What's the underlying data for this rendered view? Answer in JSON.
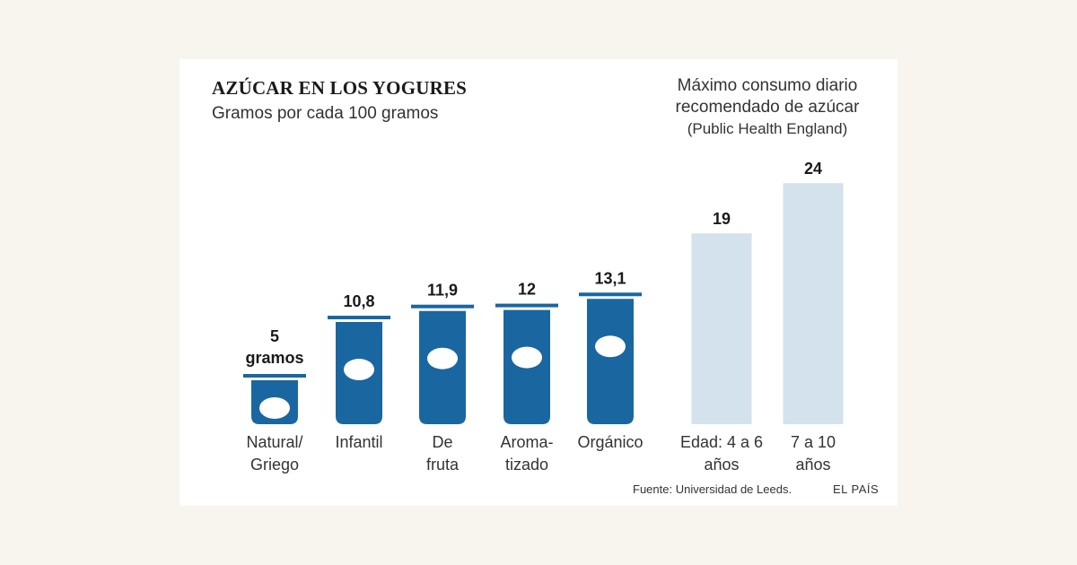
{
  "header": {
    "title": "AZÚCAR EN LOS YOGURES",
    "subtitle": "Gramos por cada 100 gramos"
  },
  "side_note": {
    "line1": "Máximo consumo diario",
    "line2": "recomendado de azúcar",
    "line3": "(Public Health England)"
  },
  "footer": {
    "source": "Fuente: Universidad de Leeds.",
    "brand": "EL PAÍS"
  },
  "colors": {
    "yogurt_bar": "#1a66a0",
    "recommendation_bar": "#d3e2ec",
    "background": "#f8f5ee"
  },
  "chart_data": [
    {
      "type": "bar",
      "unit": "gramos",
      "categories": [
        [
          "Natural/",
          "Griego"
        ],
        [
          "Infantil"
        ],
        [
          "De",
          "fruta"
        ],
        [
          "Aroma-",
          "tizado"
        ],
        [
          "Orgánico"
        ]
      ],
      "values": [
        5,
        10.8,
        11.9,
        12,
        13.1
      ],
      "value_labels": [
        "5",
        "10,8",
        "11,9",
        "12",
        "13,1"
      ],
      "first_label_unit": "gramos",
      "ylim": [
        0,
        24
      ]
    },
    {
      "type": "bar",
      "categories": [
        [
          "Edad: 4 a 6",
          "años"
        ],
        [
          "7 a 10",
          "años"
        ]
      ],
      "values": [
        19,
        24
      ],
      "value_labels": [
        "19",
        "24"
      ],
      "ylim": [
        0,
        24
      ]
    }
  ]
}
